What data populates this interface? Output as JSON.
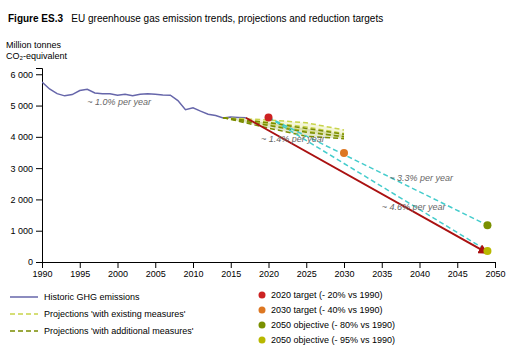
{
  "chart_data": {
    "type": "line",
    "title": "Figure ES.3",
    "subtitle": "   EU greenhouse gas emission trends, projections and reduction targets",
    "ylabel": [
      "Million tonnes",
      "CO₂-equivalent"
    ],
    "xlim": [
      1990,
      2050
    ],
    "ylim": [
      0,
      6200
    ],
    "xticks": [
      1990,
      1995,
      2000,
      2005,
      2010,
      2015,
      2020,
      2025,
      2030,
      2035,
      2040,
      2045,
      2050
    ],
    "yticks": [
      0,
      {
        "value": 1000,
        "label": "1 000"
      },
      {
        "value": 2000,
        "label": "2 000"
      },
      {
        "value": 3000,
        "label": "3 000"
      },
      {
        "value": 4000,
        "label": "4 000"
      },
      {
        "value": 5000,
        "label": "5 000"
      },
      {
        "value": 6000,
        "label": "6 000"
      }
    ],
    "grid": false,
    "legend": "bottom",
    "series": [
      {
        "name": "Historic GHG emissions",
        "type": "line",
        "color": "#6666aa",
        "line_style": "solid",
        "x": [
          1990,
          1991,
          1992,
          1993,
          1994,
          1995,
          1996,
          1997,
          1998,
          1999,
          2000,
          2001,
          2002,
          2003,
          2004,
          2005,
          2006,
          2007,
          2008,
          2009,
          2010,
          2011,
          2012,
          2013,
          2014,
          2015,
          2016,
          2017
        ],
        "values": [
          5750,
          5530,
          5380,
          5310,
          5350,
          5480,
          5520,
          5400,
          5380,
          5380,
          5330,
          5360,
          5310,
          5360,
          5380,
          5360,
          5340,
          5330,
          5160,
          4870,
          4930,
          4820,
          4720,
          4680,
          4600,
          4630,
          4620,
          4610
        ]
      },
      {
        "name": "Projections 'with existing measures'",
        "type": "band",
        "color": "#c8d44a",
        "line_style": "dashed",
        "x": [
          2014,
          2020,
          2025,
          2030
        ],
        "upper": [
          4610,
          4540,
          4450,
          4220
        ],
        "lower": [
          4610,
          4390,
          4180,
          3990
        ],
        "values": [
          4610,
          4465,
          4315,
          4105
        ]
      },
      {
        "name": "Projections 'with additional measures'",
        "type": "band",
        "color": "#7a8c00",
        "line_style": "dashed",
        "x": [
          2014,
          2020,
          2025,
          2030
        ],
        "upper": [
          4610,
          4450,
          4270,
          4080
        ],
        "lower": [
          4610,
          4280,
          4020,
          3940
        ],
        "values": [
          4610,
          4365,
          4145,
          4010
        ]
      },
      {
        "type": "line",
        "color": "#44cccc",
        "line_style": "dashed",
        "x": [
          2020,
          2049
        ],
        "values": [
          4620,
          1175
        ]
      },
      {
        "type": "line",
        "color": "#44cccc",
        "line_style": "dashed",
        "x": [
          2020,
          2049
        ],
        "values": [
          4620,
          355
        ]
      },
      {
        "type": "arrow",
        "color": "#aa1111",
        "line_style": "solid",
        "x": [
          2017,
          2049
        ],
        "values": [
          4610,
          280
        ]
      },
      {
        "name": "2020 target (- 20% vs 1990)",
        "type": "scatter",
        "marker": "circle",
        "color": "#cc2222",
        "x": [
          2020
        ],
        "values": [
          4620
        ]
      },
      {
        "name": "2030 target (- 40% vs 1990)",
        "type": "scatter",
        "marker": "circle",
        "color": "#dd7722",
        "x": [
          2030
        ],
        "values": [
          3480
        ]
      },
      {
        "name": "2050 objective (- 80% vs 1990)",
        "type": "scatter",
        "marker": "circle",
        "color": "#7a9000",
        "x": [
          2049
        ],
        "values": [
          1175
        ]
      },
      {
        "name": "2050 objective (- 95% vs 1990)",
        "type": "scatter",
        "marker": "circle",
        "color": "#b8b800",
        "x": [
          2049
        ],
        "values": [
          355
        ]
      }
    ],
    "annotations": [
      {
        "text": "~ 1.0% per year",
        "x": 1996,
        "y": 5020
      },
      {
        "text": "~ 1.4% per year",
        "x": 2019,
        "y": 3820
      },
      {
        "text": "~ 3.3% per year",
        "x": 2036,
        "y": 2580
      },
      {
        "text": "~ 4.6% per year",
        "x": 2035,
        "y": 1650
      }
    ]
  }
}
